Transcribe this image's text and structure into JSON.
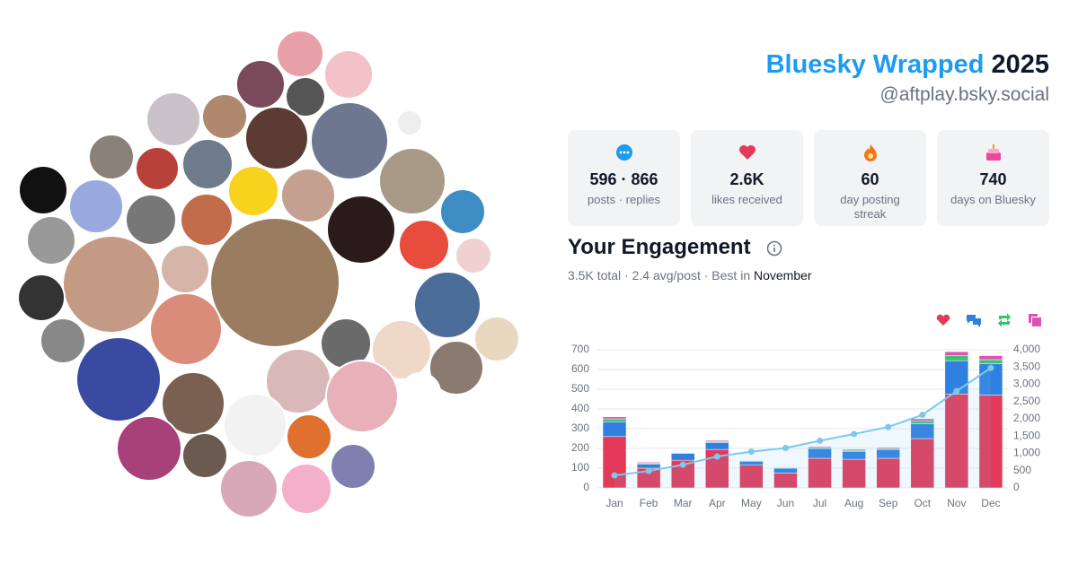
{
  "header": {
    "brand": "Bluesky Wrapped",
    "year": "2025",
    "handle": "@aftplay.bsky.social"
  },
  "stats": [
    {
      "value": "596 · 866",
      "label": "posts · replies"
    },
    {
      "value": "2.6K",
      "label": "likes received"
    },
    {
      "value": "60",
      "label": "day posting streak"
    },
    {
      "value": "740",
      "label": "days on Bluesky"
    }
  ],
  "engagement": {
    "title": "Your Engagement",
    "summary": "3.5K total · 2.4 avg/post · Best in",
    "best_month": "November"
  },
  "chart_data": {
    "type": "bar",
    "stacked": true,
    "categories": [
      "Jan",
      "Feb",
      "Mar",
      "Apr",
      "May",
      "Jun",
      "Jul",
      "Aug",
      "Sep",
      "Oct",
      "Nov",
      "Dec"
    ],
    "series": [
      {
        "color": "#e23a58",
        "values": [
          260,
          100,
          140,
          195,
          115,
          75,
          150,
          145,
          150,
          250,
          475,
          470
        ]
      },
      {
        "color": "#2f80e0",
        "values": [
          75,
          20,
          35,
          35,
          20,
          25,
          50,
          40,
          45,
          75,
          170,
          160
        ]
      },
      {
        "color": "#3cc26b",
        "values": [
          15,
          5,
          3,
          5,
          3,
          3,
          5,
          5,
          5,
          15,
          25,
          20
        ]
      },
      {
        "color": "#e04fb5",
        "values": [
          10,
          5,
          2,
          5,
          2,
          2,
          5,
          5,
          5,
          10,
          20,
          20
        ]
      },
      {
        "type": "line",
        "axis": "y2",
        "color": "#7cc8ef",
        "values": [
          360,
          490,
          670,
          910,
          1050,
          1155,
          1365,
          1560,
          1765,
          2115,
          2805,
          3475
        ]
      }
    ],
    "ylim": [
      0,
      700
    ],
    "yticks": [
      0,
      100,
      200,
      300,
      400,
      500,
      600,
      700
    ],
    "y2lim": [
      0,
      4000
    ],
    "y2ticks": [
      0,
      500,
      {
        "value": 1000,
        "label": "1,000"
      },
      {
        "value": 1500,
        "label": "1,500"
      },
      {
        "value": 2000,
        "label": "2,000"
      },
      {
        "value": 2500,
        "label": "2,500"
      },
      {
        "value": 3000,
        "label": "3,000"
      },
      {
        "value": 3500,
        "label": "3,500"
      },
      {
        "value": 4000,
        "label": "4,000"
      }
    ],
    "grid": true
  }
}
